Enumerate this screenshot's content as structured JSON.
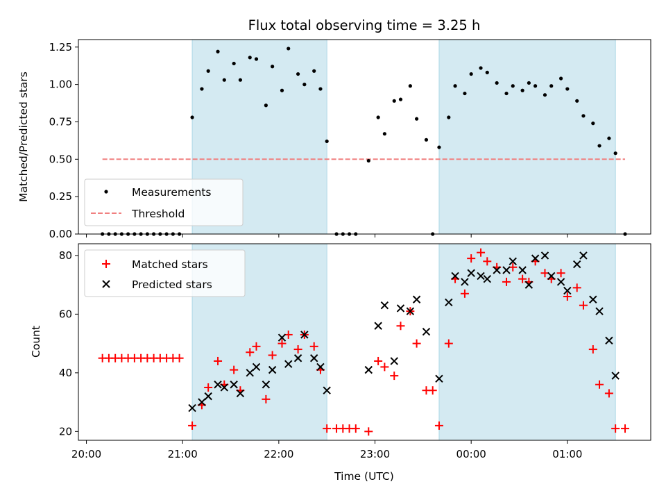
{
  "chart_data": {
    "type": "scatter",
    "title": "Flux total observing time = 3.25 h",
    "xlabel": "Time (UTC)",
    "x_unit": "UTC time",
    "x_ticks": [
      "20:00",
      "21:00",
      "22:00",
      "23:00",
      "00:00",
      "01:00"
    ],
    "shaded_intervals": [
      [
        "21:06",
        "22:30"
      ],
      [
        "23:40",
        "01:30"
      ]
    ],
    "shade_color": "#add8e6",
    "top_panel": {
      "ylabel": "Matched/Predicted stars",
      "ylim": [
        0,
        1.3
      ],
      "y_ticks": [
        "0.00",
        "0.25",
        "0.50",
        "0.75",
        "1.00",
        "1.25"
      ],
      "legend_position": "lower left",
      "series": [
        {
          "name": "Measurements",
          "marker": "dot",
          "color": "#000000",
          "points": [
            [
              "20:10",
              0
            ],
            [
              "20:14",
              0
            ],
            [
              "20:18",
              0
            ],
            [
              "20:22",
              0
            ],
            [
              "20:26",
              0
            ],
            [
              "20:30",
              0
            ],
            [
              "20:34",
              0
            ],
            [
              "20:38",
              0
            ],
            [
              "20:42",
              0
            ],
            [
              "20:46",
              0
            ],
            [
              "20:50",
              0
            ],
            [
              "20:54",
              0
            ],
            [
              "20:58",
              0
            ],
            [
              "21:06",
              0.78
            ],
            [
              "21:12",
              0.97
            ],
            [
              "21:16",
              1.09
            ],
            [
              "21:22",
              1.22
            ],
            [
              "21:26",
              1.03
            ],
            [
              "21:32",
              1.14
            ],
            [
              "21:36",
              1.03
            ],
            [
              "21:42",
              1.18
            ],
            [
              "21:46",
              1.17
            ],
            [
              "21:52",
              0.86
            ],
            [
              "21:56",
              1.12
            ],
            [
              "22:02",
              0.96
            ],
            [
              "22:06",
              1.24
            ],
            [
              "22:12",
              1.07
            ],
            [
              "22:16",
              1.0
            ],
            [
              "22:22",
              1.09
            ],
            [
              "22:26",
              0.97
            ],
            [
              "22:30",
              0.62
            ],
            [
              "22:36",
              0
            ],
            [
              "22:40",
              0
            ],
            [
              "22:44",
              0
            ],
            [
              "22:48",
              0
            ],
            [
              "22:56",
              0.49
            ],
            [
              "23:02",
              0.78
            ],
            [
              "23:06",
              0.67
            ],
            [
              "23:12",
              0.89
            ],
            [
              "23:16",
              0.9
            ],
            [
              "23:22",
              0.99
            ],
            [
              "23:26",
              0.77
            ],
            [
              "23:32",
              0.63
            ],
            [
              "23:36",
              0
            ],
            [
              "23:40",
              0.58
            ],
            [
              "23:46",
              0.78
            ],
            [
              "23:50",
              0.99
            ],
            [
              "23:56",
              0.94
            ],
            [
              "00:00",
              1.07
            ],
            [
              "00:06",
              1.11
            ],
            [
              "00:10",
              1.08
            ],
            [
              "00:16",
              1.01
            ],
            [
              "00:22",
              0.94
            ],
            [
              "00:26",
              0.99
            ],
            [
              "00:32",
              0.96
            ],
            [
              "00:36",
              1.01
            ],
            [
              "00:40",
              0.99
            ],
            [
              "00:46",
              0.93
            ],
            [
              "00:50",
              0.99
            ],
            [
              "00:56",
              1.04
            ],
            [
              "01:00",
              0.97
            ],
            [
              "01:06",
              0.89
            ],
            [
              "01:10",
              0.79
            ],
            [
              "01:16",
              0.74
            ],
            [
              "01:20",
              0.59
            ],
            [
              "01:26",
              0.64
            ],
            [
              "01:30",
              0.54
            ],
            [
              "01:36",
              0
            ]
          ]
        },
        {
          "name": "Threshold",
          "line_style": "dashed",
          "color": "#f08080",
          "points": [
            [
              "20:10",
              0.5
            ],
            [
              "01:36",
              0.5
            ]
          ]
        }
      ]
    },
    "bottom_panel": {
      "ylabel": "Count",
      "ylim": [
        17,
        84
      ],
      "y_ticks": [
        "20",
        "40",
        "60",
        "80"
      ],
      "legend_position": "upper left",
      "series": [
        {
          "name": "Matched stars",
          "marker": "plus",
          "color": "#ff0000",
          "points": [
            [
              "20:10",
              45
            ],
            [
              "20:14",
              45
            ],
            [
              "20:18",
              45
            ],
            [
              "20:22",
              45
            ],
            [
              "20:26",
              45
            ],
            [
              "20:30",
              45
            ],
            [
              "20:34",
              45
            ],
            [
              "20:38",
              45
            ],
            [
              "20:42",
              45
            ],
            [
              "20:46",
              45
            ],
            [
              "20:50",
              45
            ],
            [
              "20:54",
              45
            ],
            [
              "20:58",
              45
            ],
            [
              "21:06",
              22
            ],
            [
              "21:12",
              29
            ],
            [
              "21:16",
              35
            ],
            [
              "21:22",
              44
            ],
            [
              "21:26",
              36
            ],
            [
              "21:32",
              41
            ],
            [
              "21:36",
              34
            ],
            [
              "21:42",
              47
            ],
            [
              "21:46",
              49
            ],
            [
              "21:52",
              31
            ],
            [
              "21:56",
              46
            ],
            [
              "22:02",
              50
            ],
            [
              "22:06",
              53
            ],
            [
              "22:12",
              48
            ],
            [
              "22:16",
              53
            ],
            [
              "22:22",
              49
            ],
            [
              "22:26",
              41
            ],
            [
              "22:30",
              21
            ],
            [
              "22:36",
              21
            ],
            [
              "22:40",
              21
            ],
            [
              "22:44",
              21
            ],
            [
              "22:48",
              21
            ],
            [
              "22:56",
              20
            ],
            [
              "23:02",
              44
            ],
            [
              "23:06",
              42
            ],
            [
              "23:12",
              39
            ],
            [
              "23:16",
              56
            ],
            [
              "23:22",
              61
            ],
            [
              "23:26",
              50
            ],
            [
              "23:32",
              34
            ],
            [
              "23:36",
              34
            ],
            [
              "23:40",
              22
            ],
            [
              "23:46",
              50
            ],
            [
              "23:50",
              72
            ],
            [
              "23:56",
              67
            ],
            [
              "00:00",
              79
            ],
            [
              "00:06",
              81
            ],
            [
              "00:10",
              78
            ],
            [
              "00:16",
              76
            ],
            [
              "00:22",
              71
            ],
            [
              "00:26",
              76
            ],
            [
              "00:32",
              72
            ],
            [
              "00:36",
              71
            ],
            [
              "00:40",
              78
            ],
            [
              "00:46",
              74
            ],
            [
              "00:50",
              72
            ],
            [
              "00:56",
              74
            ],
            [
              "01:00",
              66
            ],
            [
              "01:06",
              69
            ],
            [
              "01:10",
              63
            ],
            [
              "01:16",
              48
            ],
            [
              "01:20",
              36
            ],
            [
              "01:26",
              33
            ],
            [
              "01:30",
              21
            ],
            [
              "01:36",
              21
            ]
          ]
        },
        {
          "name": "Predicted stars",
          "marker": "x",
          "color": "#000000",
          "points": [
            [
              "21:06",
              28
            ],
            [
              "21:12",
              30
            ],
            [
              "21:16",
              32
            ],
            [
              "21:22",
              36
            ],
            [
              "21:26",
              35
            ],
            [
              "21:32",
              36
            ],
            [
              "21:36",
              33
            ],
            [
              "21:42",
              40
            ],
            [
              "21:46",
              42
            ],
            [
              "21:52",
              36
            ],
            [
              "21:56",
              41
            ],
            [
              "22:02",
              52
            ],
            [
              "22:06",
              43
            ],
            [
              "22:12",
              45
            ],
            [
              "22:16",
              53
            ],
            [
              "22:22",
              45
            ],
            [
              "22:26",
              42
            ],
            [
              "22:30",
              34
            ],
            [
              "22:56",
              41
            ],
            [
              "23:02",
              56
            ],
            [
              "23:06",
              63
            ],
            [
              "23:12",
              44
            ],
            [
              "23:16",
              62
            ],
            [
              "23:22",
              61
            ],
            [
              "23:26",
              65
            ],
            [
              "23:32",
              54
            ],
            [
              "23:40",
              38
            ],
            [
              "23:46",
              64
            ],
            [
              "23:50",
              73
            ],
            [
              "23:56",
              71
            ],
            [
              "00:00",
              74
            ],
            [
              "00:06",
              73
            ],
            [
              "00:10",
              72
            ],
            [
              "00:16",
              75
            ],
            [
              "00:22",
              75
            ],
            [
              "00:26",
              78
            ],
            [
              "00:32",
              75
            ],
            [
              "00:36",
              70
            ],
            [
              "00:40",
              79
            ],
            [
              "00:46",
              80
            ],
            [
              "00:50",
              73
            ],
            [
              "00:56",
              71
            ],
            [
              "01:00",
              68
            ],
            [
              "01:06",
              77
            ],
            [
              "01:10",
              80
            ],
            [
              "01:16",
              65
            ],
            [
              "01:20",
              61
            ],
            [
              "01:26",
              51
            ],
            [
              "01:30",
              39
            ]
          ]
        }
      ]
    }
  }
}
